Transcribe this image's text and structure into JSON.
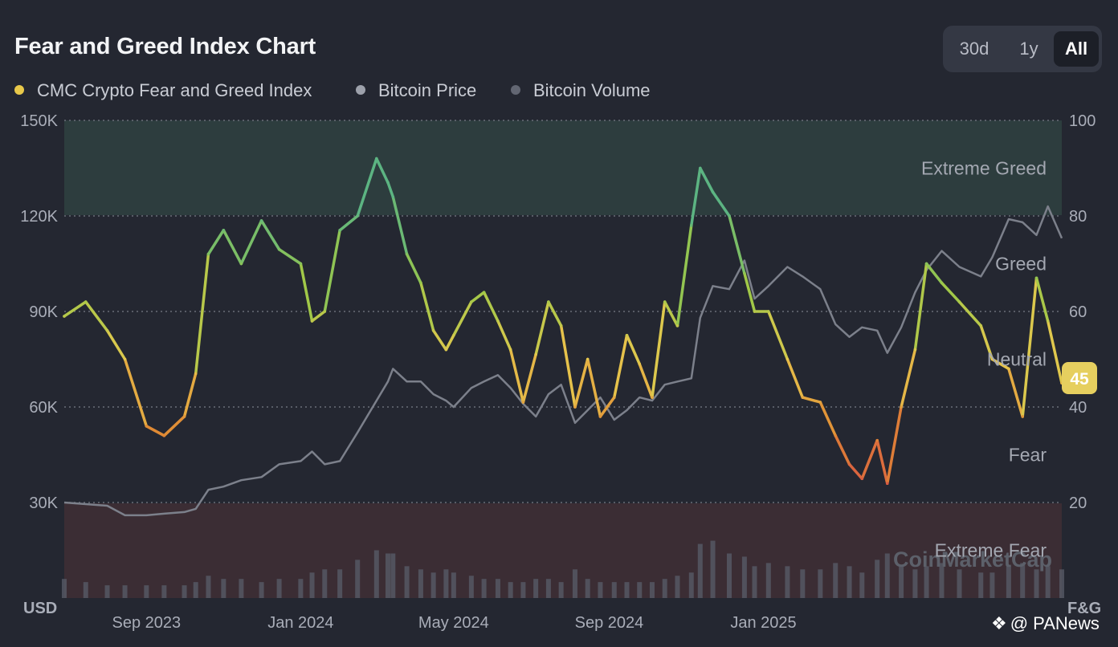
{
  "header": {
    "title": "Fear and Greed Index Chart",
    "ranges": [
      "30d",
      "1y",
      "All"
    ],
    "active_range": "All"
  },
  "legend": [
    {
      "label": "CMC Crypto Fear and Greed Index",
      "color": "#e8c84a"
    },
    {
      "label": "Bitcoin Price",
      "color": "#9da1ab"
    },
    {
      "label": "Bitcoin Volume",
      "color": "#626672"
    }
  ],
  "current_badge": "45",
  "watermark": "CoinMarketCap",
  "credit": "@ PANews",
  "chart_data": {
    "type": "line",
    "left_axis": {
      "label": "USD",
      "ticks": [
        "150K",
        "120K",
        "90K",
        "60K",
        "30K"
      ],
      "ylim": [
        0,
        150000
      ]
    },
    "right_axis": {
      "label": "F&G",
      "ticks": [
        "100",
        "80",
        "60",
        "40",
        "20"
      ],
      "ylim": [
        0,
        100
      ]
    },
    "x_ticks": [
      "Sep 2023",
      "Jan 2024",
      "May 2024",
      "Sep 2024",
      "Jan 2025"
    ],
    "zones": [
      {
        "name": "Extreme Greed",
        "from": 80,
        "to": 100
      },
      {
        "name": "Greed",
        "from": 60,
        "to": 80
      },
      {
        "name": "Neutral",
        "from": 40,
        "to": 60
      },
      {
        "name": "Fear",
        "from": 20,
        "to": 40
      },
      {
        "name": "Extreme Fear",
        "from": 0,
        "to": 20
      }
    ],
    "x": [
      "2023-06-28",
      "2023-07-15",
      "2023-08-01",
      "2023-08-15",
      "2023-09-01",
      "2023-09-15",
      "2023-10-01",
      "2023-10-10",
      "2023-10-20",
      "2023-11-01",
      "2023-11-15",
      "2023-12-01",
      "2023-12-15",
      "2024-01-01",
      "2024-01-10",
      "2024-01-20",
      "2024-02-01",
      "2024-02-15",
      "2024-03-01",
      "2024-03-10",
      "2024-03-14",
      "2024-03-25",
      "2024-04-05",
      "2024-04-15",
      "2024-04-25",
      "2024-05-01",
      "2024-05-15",
      "2024-05-25",
      "2024-06-05",
      "2024-06-15",
      "2024-06-25",
      "2024-07-05",
      "2024-07-15",
      "2024-07-25",
      "2024-08-05",
      "2024-08-15",
      "2024-08-25",
      "2024-09-05",
      "2024-09-15",
      "2024-09-25",
      "2024-10-05",
      "2024-10-15",
      "2024-10-25",
      "2024-11-05",
      "2024-11-12",
      "2024-11-22",
      "2024-12-05",
      "2024-12-17",
      "2024-12-25",
      "2025-01-05",
      "2025-01-20",
      "2025-02-01",
      "2025-02-15",
      "2025-02-27",
      "2025-03-10",
      "2025-03-20",
      "2025-04-01",
      "2025-04-09",
      "2025-04-20",
      "2025-05-01",
      "2025-05-10",
      "2025-05-22",
      "2025-06-05",
      "2025-06-22",
      "2025-07-01",
      "2025-07-14",
      "2025-07-25",
      "2025-08-05",
      "2025-08-14",
      "2025-08-25"
    ],
    "series": [
      {
        "name": "CMC Crypto Fear and Greed Index",
        "axis": "right",
        "values": [
          59,
          62,
          56,
          50,
          36,
          34,
          38,
          47,
          72,
          77,
          70,
          79,
          73,
          70,
          58,
          60,
          77,
          80,
          92,
          87,
          84,
          72,
          66,
          56,
          52,
          55,
          62,
          64,
          58,
          52,
          41,
          51,
          62,
          57,
          40,
          50,
          38,
          42,
          55,
          49,
          42,
          62,
          57,
          78,
          90,
          85,
          80,
          68,
          60,
          60,
          50,
          42,
          41,
          34,
          28,
          25,
          33,
          24,
          40,
          52,
          70,
          66,
          62,
          57,
          50,
          48,
          38,
          67,
          58,
          45
        ]
      },
      {
        "name": "Bitcoin Price",
        "values": [
          30000,
          29500,
          29000,
          26000,
          26000,
          26500,
          27000,
          28000,
          34000,
          35000,
          37000,
          38000,
          42000,
          43000,
          46000,
          42000,
          43000,
          52000,
          62000,
          68000,
          72000,
          68000,
          68000,
          64000,
          62000,
          60000,
          66000,
          68000,
          70000,
          66000,
          61000,
          57000,
          64000,
          67000,
          55000,
          59000,
          63000,
          56000,
          59000,
          63000,
          62000,
          67000,
          68000,
          69000,
          88000,
          98000,
          97000,
          106000,
          94000,
          98000,
          104000,
          101000,
          97000,
          86000,
          82000,
          85000,
          84000,
          77000,
          85000,
          96000,
          103000,
          109000,
          104000,
          101000,
          107000,
          119000,
          118000,
          114000,
          123000,
          113000
        ]
      },
      {
        "name": "Bitcoin Volume",
        "values": [
          6000,
          5000,
          4000,
          4000,
          4000,
          4000,
          4000,
          5000,
          7000,
          6000,
          6000,
          5000,
          6000,
          6000,
          8000,
          9000,
          9000,
          12000,
          15000,
          14000,
          14000,
          10000,
          9000,
          8000,
          9000,
          8000,
          7000,
          6000,
          6000,
          5000,
          5000,
          6000,
          6000,
          5000,
          9000,
          6000,
          5000,
          5000,
          5000,
          5000,
          5000,
          6000,
          7000,
          8000,
          17000,
          18000,
          14000,
          13000,
          10000,
          11000,
          10000,
          9000,
          9000,
          11000,
          10000,
          8000,
          12000,
          14000,
          10000,
          9000,
          10000,
          11000,
          9000,
          8000,
          8000,
          10000,
          11000,
          9000,
          10000,
          9000
        ]
      }
    ]
  }
}
